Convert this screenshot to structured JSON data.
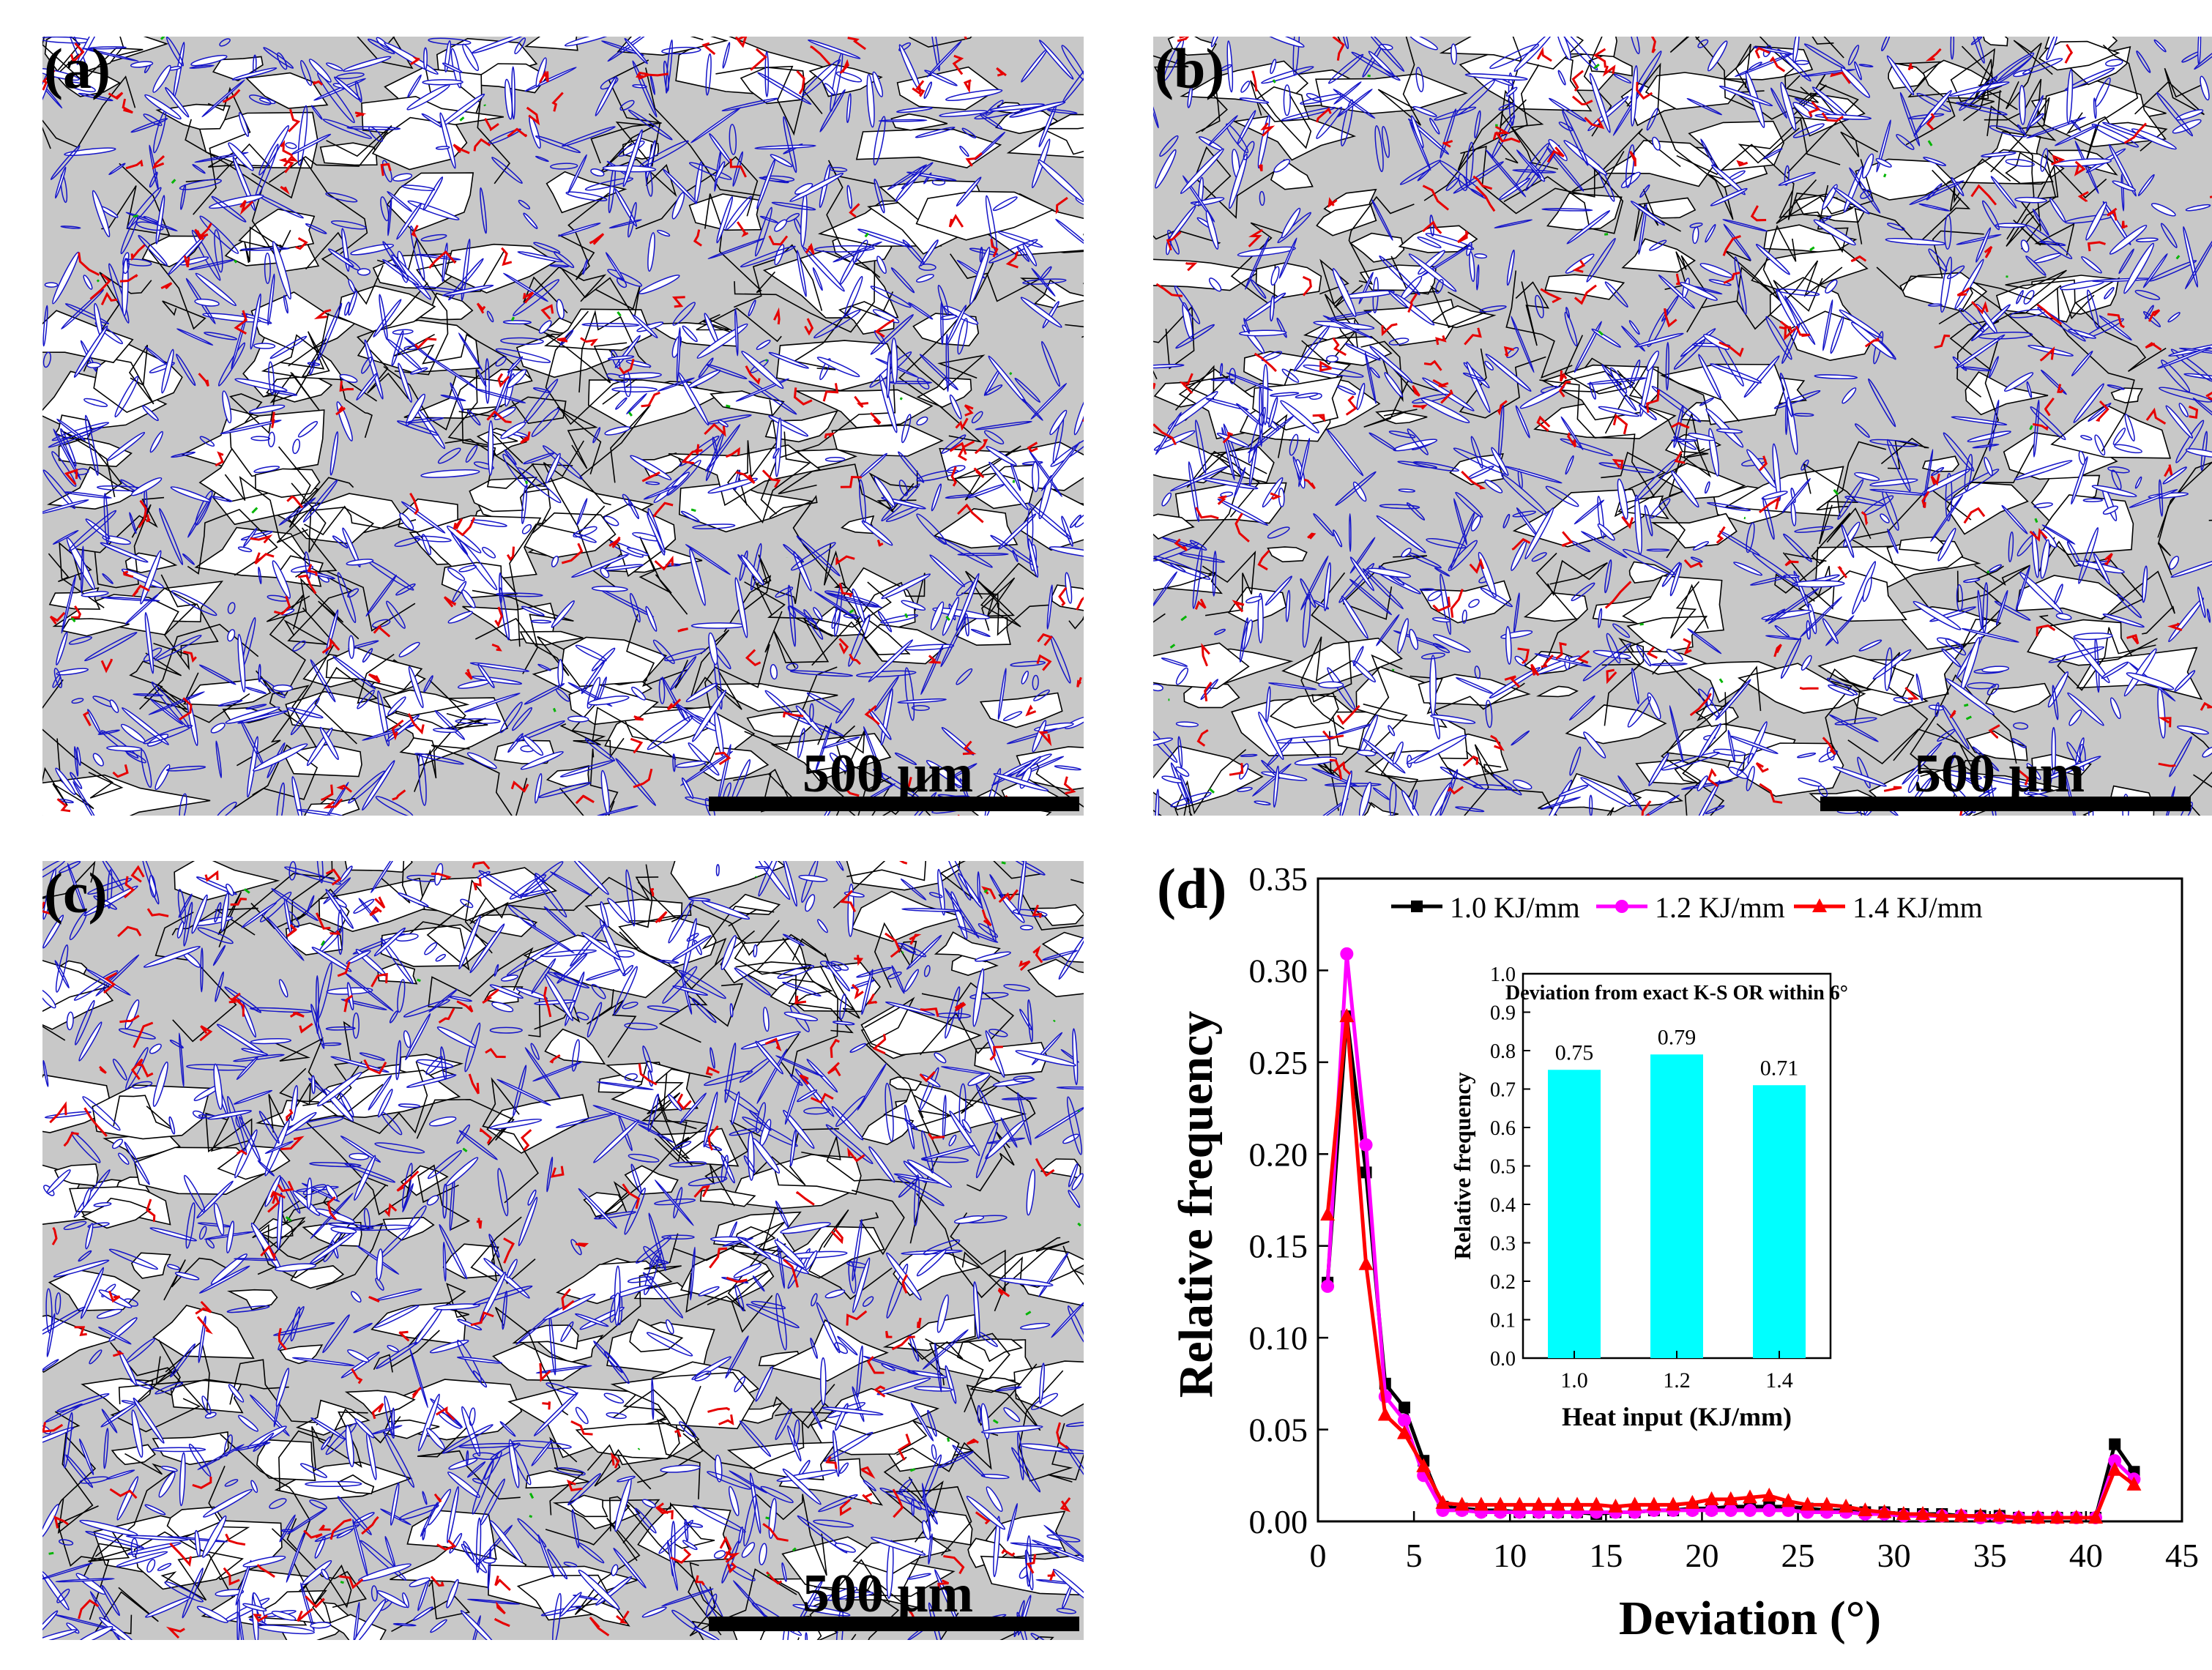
{
  "panels": [
    {
      "label": "(a)",
      "scale_text": "500 μm"
    },
    {
      "label": "(b)",
      "scale_text": "500 μm"
    },
    {
      "label": "(c)",
      "scale_text": "500 μm"
    }
  ],
  "panel_d_label": "(d)",
  "colors": {
    "map_bg": "#c8c8c8",
    "blue_boundary": "#1414c8",
    "red_boundary": "#e60000",
    "black_boundary": "#000000",
    "green_boundary": "#00b400",
    "series_1": "#000000",
    "series_2": "#ff00ff",
    "series_3": "#ff0000",
    "inset_bar": "#00ffff"
  },
  "chart_data": [
    {
      "type": "line",
      "xlabel": "Deviation (°)",
      "ylabel": "Relative frequency",
      "xlim": [
        0,
        45
      ],
      "ylim": [
        0,
        0.35
      ],
      "xticks": [
        "0",
        "5",
        "10",
        "15",
        "20",
        "25",
        "30",
        "35",
        "40",
        "45"
      ],
      "yticks": [
        "0.00",
        "0.05",
        "0.10",
        "0.15",
        "0.20",
        "0.25",
        "0.30",
        "0.35"
      ],
      "x": [
        0.5,
        1.5,
        2.5,
        3.5,
        4.5,
        5.5,
        6.5,
        7.5,
        8.5,
        9.5,
        10.5,
        11.5,
        12.5,
        13.5,
        14.5,
        15.5,
        16.5,
        17.5,
        18.5,
        19.5,
        20.5,
        21.5,
        22.5,
        23.5,
        24.5,
        25.5,
        26.5,
        27.5,
        28.5,
        29.5,
        30.5,
        31.5,
        32.5,
        33.5,
        34.5,
        35.5,
        36.5,
        37.5,
        38.5,
        39.5,
        40.5,
        41.5,
        42.5
      ],
      "series": [
        {
          "name": "1.0 KJ/mm",
          "color": "#000000",
          "marker": "square",
          "values": [
            0.13,
            0.275,
            0.19,
            0.075,
            0.062,
            0.033,
            0.008,
            0.007,
            0.006,
            0.006,
            0.005,
            0.005,
            0.005,
            0.005,
            0.004,
            0.005,
            0.005,
            0.006,
            0.006,
            0.007,
            0.007,
            0.008,
            0.008,
            0.008,
            0.008,
            0.007,
            0.006,
            0.006,
            0.005,
            0.005,
            0.004,
            0.004,
            0.004,
            0.003,
            0.003,
            0.003,
            0.002,
            0.002,
            0.002,
            0.002,
            0.002,
            0.042,
            0.027
          ]
        },
        {
          "name": "1.2 KJ/mm",
          "color": "#ff00ff",
          "marker": "circle",
          "values": [
            0.128,
            0.309,
            0.205,
            0.068,
            0.055,
            0.025,
            0.006,
            0.006,
            0.005,
            0.005,
            0.005,
            0.005,
            0.005,
            0.005,
            0.005,
            0.005,
            0.005,
            0.006,
            0.006,
            0.006,
            0.006,
            0.006,
            0.006,
            0.006,
            0.006,
            0.005,
            0.005,
            0.005,
            0.004,
            0.004,
            0.003,
            0.003,
            0.003,
            0.003,
            0.002,
            0.002,
            0.002,
            0.002,
            0.002,
            0.002,
            0.002,
            0.033,
            0.023
          ]
        },
        {
          "name": "1.4 KJ/mm",
          "color": "#ff0000",
          "marker": "triangle",
          "values": [
            0.167,
            0.275,
            0.14,
            0.058,
            0.048,
            0.03,
            0.01,
            0.009,
            0.009,
            0.009,
            0.009,
            0.009,
            0.009,
            0.009,
            0.009,
            0.008,
            0.009,
            0.009,
            0.009,
            0.01,
            0.012,
            0.012,
            0.013,
            0.014,
            0.011,
            0.009,
            0.009,
            0.008,
            0.006,
            0.005,
            0.004,
            0.004,
            0.003,
            0.003,
            0.003,
            0.003,
            0.002,
            0.002,
            0.002,
            0.002,
            0.002,
            0.028,
            0.02
          ]
        }
      ]
    },
    {
      "type": "bar",
      "title": "Deviation from exact K-S OR within 6°",
      "xlabel": "Heat input (KJ/mm)",
      "ylabel": "Relative frequency",
      "categories": [
        "1.0",
        "1.2",
        "1.4"
      ],
      "values": [
        0.75,
        0.79,
        0.71
      ],
      "value_labels": [
        "0.75",
        "0.79",
        "0.71"
      ],
      "ylim": [
        0,
        1.0
      ],
      "yticks": [
        "0.0",
        "0.1",
        "0.2",
        "0.3",
        "0.4",
        "0.5",
        "0.6",
        "0.7",
        "0.8",
        "0.9",
        "1.0"
      ],
      "color": "#00ffff"
    }
  ]
}
